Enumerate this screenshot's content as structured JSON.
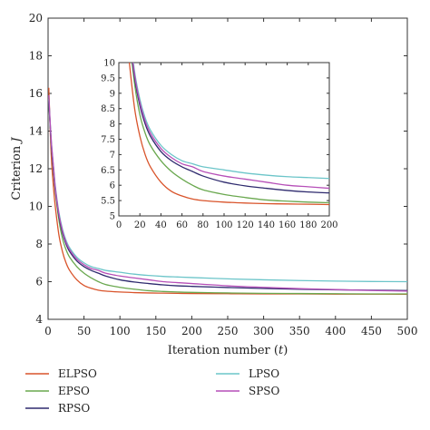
{
  "chart_data": {
    "type": "line",
    "xlabel_pre": "Iteration number (",
    "xlabel_var": "t",
    "xlabel_post": ")",
    "ylabel_pre": "Criterion ",
    "ylabel_var": "J",
    "xlim": [
      0,
      500
    ],
    "ylim": [
      4,
      20
    ],
    "xticks": [
      "0",
      "50",
      "100",
      "150",
      "200",
      "250",
      "300",
      "350",
      "400",
      "450",
      "500"
    ],
    "yticks": [
      "4",
      "6",
      "8",
      "10",
      "12",
      "14",
      "16",
      "18",
      "20"
    ],
    "grid": false,
    "legend_position": "below",
    "x": [
      1,
      3,
      5,
      8,
      10,
      15,
      20,
      25,
      30,
      40,
      50,
      60,
      70,
      80,
      100,
      120,
      140,
      160,
      180,
      200,
      250,
      300,
      350,
      400,
      450,
      500
    ],
    "series": [
      {
        "name": "ELPSO",
        "color": "#d9542b",
        "values": [
          16.3,
          14.0,
          12.3,
          10.8,
          10.0,
          8.5,
          7.6,
          7.0,
          6.6,
          6.1,
          5.8,
          5.65,
          5.55,
          5.5,
          5.45,
          5.42,
          5.4,
          5.39,
          5.38,
          5.37,
          5.36,
          5.35,
          5.35,
          5.34,
          5.34,
          5.33
        ]
      },
      {
        "name": "EPSO",
        "color": "#6aa84f",
        "values": [
          15.8,
          14.3,
          13.0,
          11.6,
          10.8,
          9.3,
          8.3,
          7.7,
          7.3,
          6.8,
          6.45,
          6.2,
          6.0,
          5.85,
          5.7,
          5.6,
          5.52,
          5.48,
          5.45,
          5.43,
          5.4,
          5.38,
          5.37,
          5.36,
          5.35,
          5.35
        ]
      },
      {
        "name": "RPSO",
        "color": "#2e2a6e",
        "values": [
          15.6,
          14.2,
          13.0,
          11.7,
          10.9,
          9.5,
          8.6,
          8.0,
          7.6,
          7.1,
          6.8,
          6.6,
          6.45,
          6.3,
          6.1,
          5.98,
          5.9,
          5.83,
          5.78,
          5.75,
          5.69,
          5.64,
          5.6,
          5.57,
          5.55,
          5.53
        ]
      },
      {
        "name": "LPSO",
        "color": "#6cc5c9",
        "values": [
          15.7,
          14.4,
          13.2,
          11.9,
          11.1,
          9.7,
          8.8,
          8.2,
          7.8,
          7.3,
          7.0,
          6.8,
          6.7,
          6.6,
          6.5,
          6.4,
          6.33,
          6.28,
          6.25,
          6.22,
          6.15,
          6.1,
          6.06,
          6.03,
          6.01,
          6.0
        ]
      },
      {
        "name": "SPSO",
        "color": "#b64fb8",
        "values": [
          15.9,
          14.4,
          13.2,
          11.9,
          11.0,
          9.6,
          8.7,
          8.1,
          7.7,
          7.2,
          6.9,
          6.7,
          6.6,
          6.45,
          6.3,
          6.2,
          6.1,
          6.0,
          5.95,
          5.9,
          5.78,
          5.7,
          5.63,
          5.58,
          5.53,
          5.5
        ]
      }
    ],
    "inset": {
      "xlim": [
        0,
        200
      ],
      "ylim": [
        5,
        10
      ],
      "xticks": [
        "0",
        "20",
        "40",
        "60",
        "80",
        "100",
        "120",
        "140",
        "160",
        "180",
        "200"
      ],
      "yticks": [
        "5",
        "5.5",
        "6",
        "6.5",
        "7",
        "7.5",
        "8",
        "8.5",
        "9",
        "9.5",
        "10"
      ]
    }
  }
}
